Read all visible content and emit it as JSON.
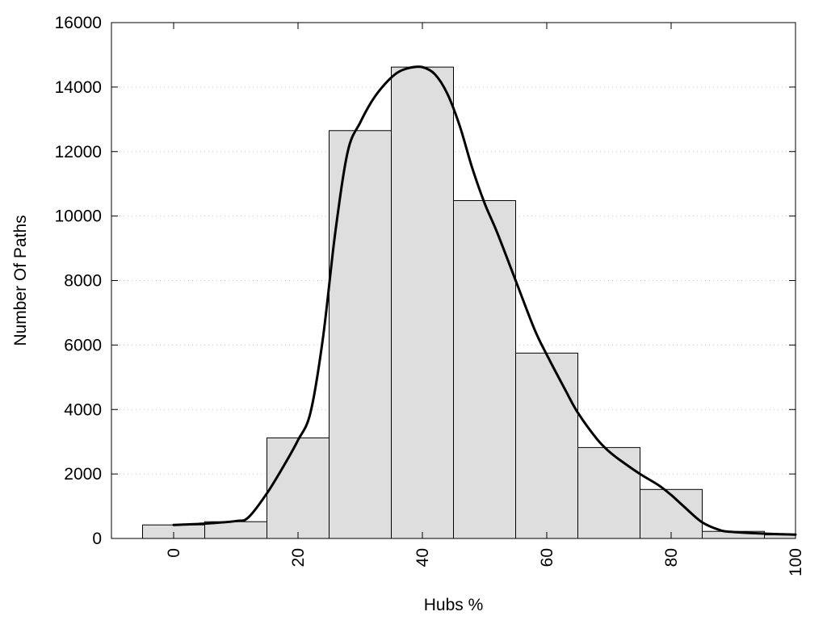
{
  "chart_data": {
    "type": "bar",
    "title": "",
    "xlabel": "Hubs %",
    "ylabel": "Number Of Paths",
    "xlim": [
      -10,
      100
    ],
    "ylim": [
      0,
      16000
    ],
    "grid": {
      "horizontal": true,
      "vertical": false
    },
    "legend": "none",
    "x_ticks": [
      0,
      20,
      40,
      60,
      80,
      100
    ],
    "y_ticks": [
      0,
      2000,
      4000,
      6000,
      8000,
      10000,
      12000,
      14000,
      16000
    ],
    "bin_width": 10,
    "bin_centers": [
      0,
      10,
      20,
      30,
      40,
      50,
      60,
      70,
      80,
      90,
      100
    ],
    "values": [
      420,
      520,
      3120,
      12650,
      14620,
      10480,
      5750,
      2820,
      1520,
      220,
      110
    ],
    "curve": {
      "x": [
        0,
        5,
        10,
        12,
        15,
        18,
        20,
        22,
        24,
        26,
        28,
        30,
        32,
        34,
        36,
        38,
        40,
        42,
        44,
        46,
        48,
        50,
        52,
        55,
        58,
        60,
        63,
        65,
        68,
        70,
        72,
        75,
        78,
        80,
        82,
        85,
        88,
        90,
        95,
        100
      ],
      "y": [
        420,
        460,
        540,
        650,
        1400,
        2350,
        3050,
        3900,
        6200,
        9500,
        12000,
        12900,
        13600,
        14100,
        14450,
        14600,
        14620,
        14400,
        13800,
        12800,
        11500,
        10400,
        9500,
        8000,
        6500,
        5700,
        4600,
        3900,
        3100,
        2700,
        2400,
        2000,
        1650,
        1350,
        1000,
        500,
        250,
        200,
        150,
        120
      ]
    },
    "colors": {
      "bar_fill": "#dedede",
      "bar_stroke": "#000000",
      "curve": "#000000"
    }
  }
}
